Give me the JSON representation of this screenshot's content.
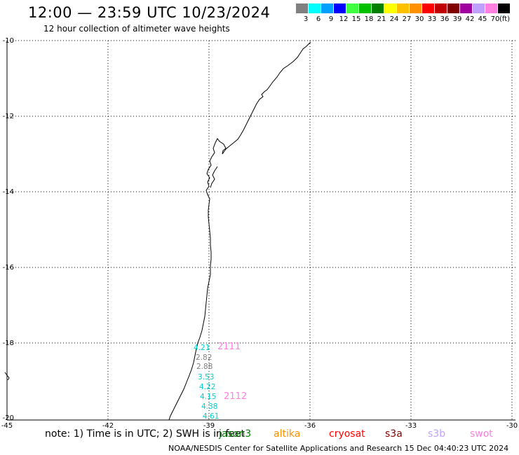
{
  "title": "12:00 — 23:59 UTC 10/23/2024",
  "subtitle": "12 hour collection of altimeter wave heights",
  "legend": {
    "unit": "(ft)",
    "items": [
      {
        "label": "3",
        "color": "#808080"
      },
      {
        "label": "6",
        "color": "#00ffff"
      },
      {
        "label": "9",
        "color": "#00a0ff"
      },
      {
        "label": "12",
        "color": "#0000ff"
      },
      {
        "label": "15",
        "color": "#40ff40"
      },
      {
        "label": "18",
        "color": "#00c000"
      },
      {
        "label": "21",
        "color": "#008000"
      },
      {
        "label": "24",
        "color": "#ffff00"
      },
      {
        "label": "27",
        "color": "#ffc000"
      },
      {
        "label": "30",
        "color": "#ff9000"
      },
      {
        "label": "33",
        "color": "#ff0000"
      },
      {
        "label": "36",
        "color": "#c00000"
      },
      {
        "label": "39",
        "color": "#800000"
      },
      {
        "label": "42",
        "color": "#a000a0"
      },
      {
        "label": "45",
        "color": "#c0a0ff"
      },
      {
        "label": "70",
        "color": "#ff80e0"
      },
      {
        "label": "",
        "color": "#000000"
      }
    ]
  },
  "lat_labels": [
    "-10",
    "-12",
    "-14",
    "-16",
    "-18",
    "-20"
  ],
  "lon_labels": [
    "-45",
    "-42",
    "-39",
    "-36",
    "-33",
    "-30"
  ],
  "wave_heights": [
    {
      "value": "4.21",
      "color": "#00d0d0"
    },
    {
      "value": "2.82",
      "color": "#808080"
    },
    {
      "value": "2.88",
      "color": "#808080"
    },
    {
      "value": "3.53",
      "color": "#00d0d0"
    },
    {
      "value": "4.22",
      "color": "#00d0d0"
    },
    {
      "value": "4.15",
      "color": "#00d0d0"
    },
    {
      "value": "4.38",
      "color": "#00d0d0"
    },
    {
      "value": "4.61",
      "color": "#00d0d0"
    }
  ],
  "passes": [
    {
      "value": "2111",
      "color": "#ff80e0"
    },
    {
      "value": "2112",
      "color": "#ff80e0"
    }
  ],
  "note": "note: 1) Time is in UTC; 2) SWH is in feet",
  "satellites": [
    {
      "name": "jason3",
      "color": "#008000"
    },
    {
      "name": "altika",
      "color": "#ff9000"
    },
    {
      "name": "cryosat",
      "color": "#ff0000"
    },
    {
      "name": "s3a",
      "color": "#800000"
    },
    {
      "name": "s3b",
      "color": "#c0a0ff"
    },
    {
      "name": "swot",
      "color": "#ff80e0"
    }
  ],
  "credit": "NOAA/NESDIS Center for Satellite Applications and Research    15 Dec 04:40:23 UTC 2024"
}
